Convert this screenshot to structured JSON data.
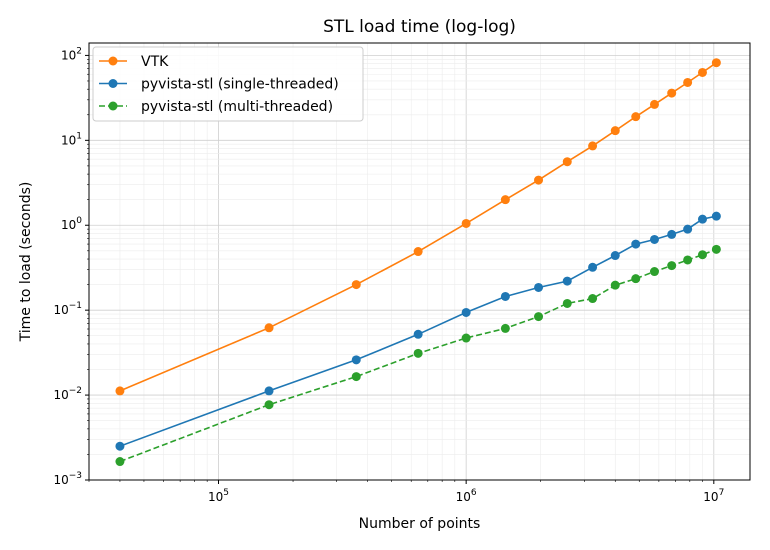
{
  "chart_data": {
    "type": "line",
    "title": "STL load time (log-log)",
    "xlabel": "Number of points",
    "ylabel": "Time to load (seconds)",
    "xscale": "log",
    "yscale": "log",
    "xlim": [
      30000,
      14000000
    ],
    "ylim": [
      0.001,
      140
    ],
    "x_ticks": [
      {
        "value": 100000,
        "base": "10",
        "exp": "5"
      },
      {
        "value": 1000000,
        "base": "10",
        "exp": "6"
      },
      {
        "value": 10000000,
        "base": "10",
        "exp": "7"
      }
    ],
    "y_ticks": [
      {
        "value": 0.001,
        "base": "10",
        "exp": "−3"
      },
      {
        "value": 0.01,
        "base": "10",
        "exp": "−2"
      },
      {
        "value": 0.1,
        "base": "10",
        "exp": "−1"
      },
      {
        "value": 1,
        "base": "10",
        "exp": "0"
      },
      {
        "value": 10,
        "base": "10",
        "exp": "1"
      },
      {
        "value": 100,
        "base": "10",
        "exp": "2"
      }
    ],
    "grid": "both",
    "legend_position": "upper-left",
    "series": [
      {
        "name": "VTK",
        "color": "#ff7f0e",
        "linestyle": "solid",
        "x": [
          40000,
          160000,
          360000,
          640000,
          1000000,
          1440000,
          1960000,
          2560000,
          3240000,
          4000000,
          4840000,
          5760000,
          6760000,
          7840000,
          9000000,
          10240000
        ],
        "y": [
          0.0112,
          0.062,
          0.2,
          0.49,
          1.05,
          2.0,
          3.4,
          5.6,
          8.6,
          13.0,
          19.0,
          26.5,
          36.0,
          48.0,
          63.0,
          82.0
        ]
      },
      {
        "name": "pyvista-stl (single-threaded)",
        "color": "#1f77b4",
        "linestyle": "solid",
        "x": [
          40000,
          160000,
          360000,
          640000,
          1000000,
          1440000,
          1960000,
          2560000,
          3240000,
          4000000,
          4840000,
          5760000,
          6760000,
          7840000,
          9000000,
          10240000
        ],
        "y": [
          0.0025,
          0.0112,
          0.026,
          0.052,
          0.094,
          0.145,
          0.185,
          0.22,
          0.32,
          0.44,
          0.6,
          0.68,
          0.78,
          0.9,
          1.18,
          1.28
        ]
      },
      {
        "name": "pyvista-stl (multi-threaded)",
        "color": "#2ca02c",
        "linestyle": "dashed",
        "x": [
          40000,
          160000,
          360000,
          640000,
          1000000,
          1440000,
          1960000,
          2560000,
          3240000,
          4000000,
          4840000,
          5760000,
          6760000,
          7840000,
          9000000,
          10240000
        ],
        "y": [
          0.00165,
          0.0077,
          0.0165,
          0.031,
          0.047,
          0.061,
          0.084,
          0.12,
          0.137,
          0.197,
          0.235,
          0.285,
          0.335,
          0.39,
          0.45,
          0.52
        ]
      }
    ]
  }
}
